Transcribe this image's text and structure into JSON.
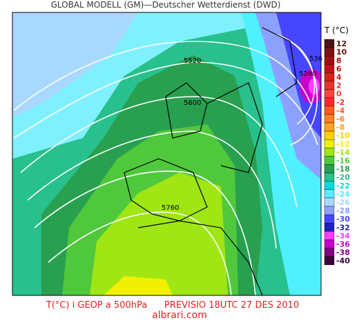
{
  "header": {
    "title": "GLOBAL MODELL (GM)—Deutscher Wetterdienst (DWD)"
  },
  "map": {
    "contour_labels": [
      "5520",
      "5600",
      "5760",
      "5280",
      "536"
    ]
  },
  "legend": {
    "title": "T (°C)",
    "items": [
      {
        "label": "12",
        "color": "#4a1410"
      },
      {
        "label": "10",
        "color": "#7a1212"
      },
      {
        "label": "8",
        "color": "#a01010"
      },
      {
        "label": "6",
        "color": "#c01414"
      },
      {
        "label": "4",
        "color": "#dc1e1e"
      },
      {
        "label": "2",
        "color": "#f03030"
      },
      {
        "label": "0",
        "color": "#ff4040"
      },
      {
        "label": "-2",
        "color": "#ff2828"
      },
      {
        "label": "-4",
        "color": "#ff5a1e"
      },
      {
        "label": "-6",
        "color": "#ff8020"
      },
      {
        "label": "-8",
        "color": "#ffa020"
      },
      {
        "label": "-10",
        "color": "#ffd200"
      },
      {
        "label": "-12",
        "color": "#f0f000"
      },
      {
        "label": "-14",
        "color": "#a0e614"
      },
      {
        "label": "-16",
        "color": "#50c83c"
      },
      {
        "label": "-18",
        "color": "#28a050"
      },
      {
        "label": "-20",
        "color": "#28c08c"
      },
      {
        "label": "-22",
        "color": "#00dcdc"
      },
      {
        "label": "-24",
        "color": "#50f0ff"
      },
      {
        "label": "-26",
        "color": "#a8d8ff"
      },
      {
        "label": "-28",
        "color": "#8ca0ff"
      },
      {
        "label": "-30",
        "color": "#4646ff"
      },
      {
        "label": "-32",
        "color": "#2020c0"
      },
      {
        "label": "-34",
        "color": "#ff3cff"
      },
      {
        "label": "-36",
        "color": "#c800c8"
      },
      {
        "label": "-38",
        "color": "#820082"
      },
      {
        "label": "-40",
        "color": "#3c003c"
      }
    ]
  },
  "footer": {
    "caption": "T(°C) i GEOP a 500hPa      PREVISIO 18UTC 27 DES 2010",
    "watermark": "albrari.com"
  }
}
